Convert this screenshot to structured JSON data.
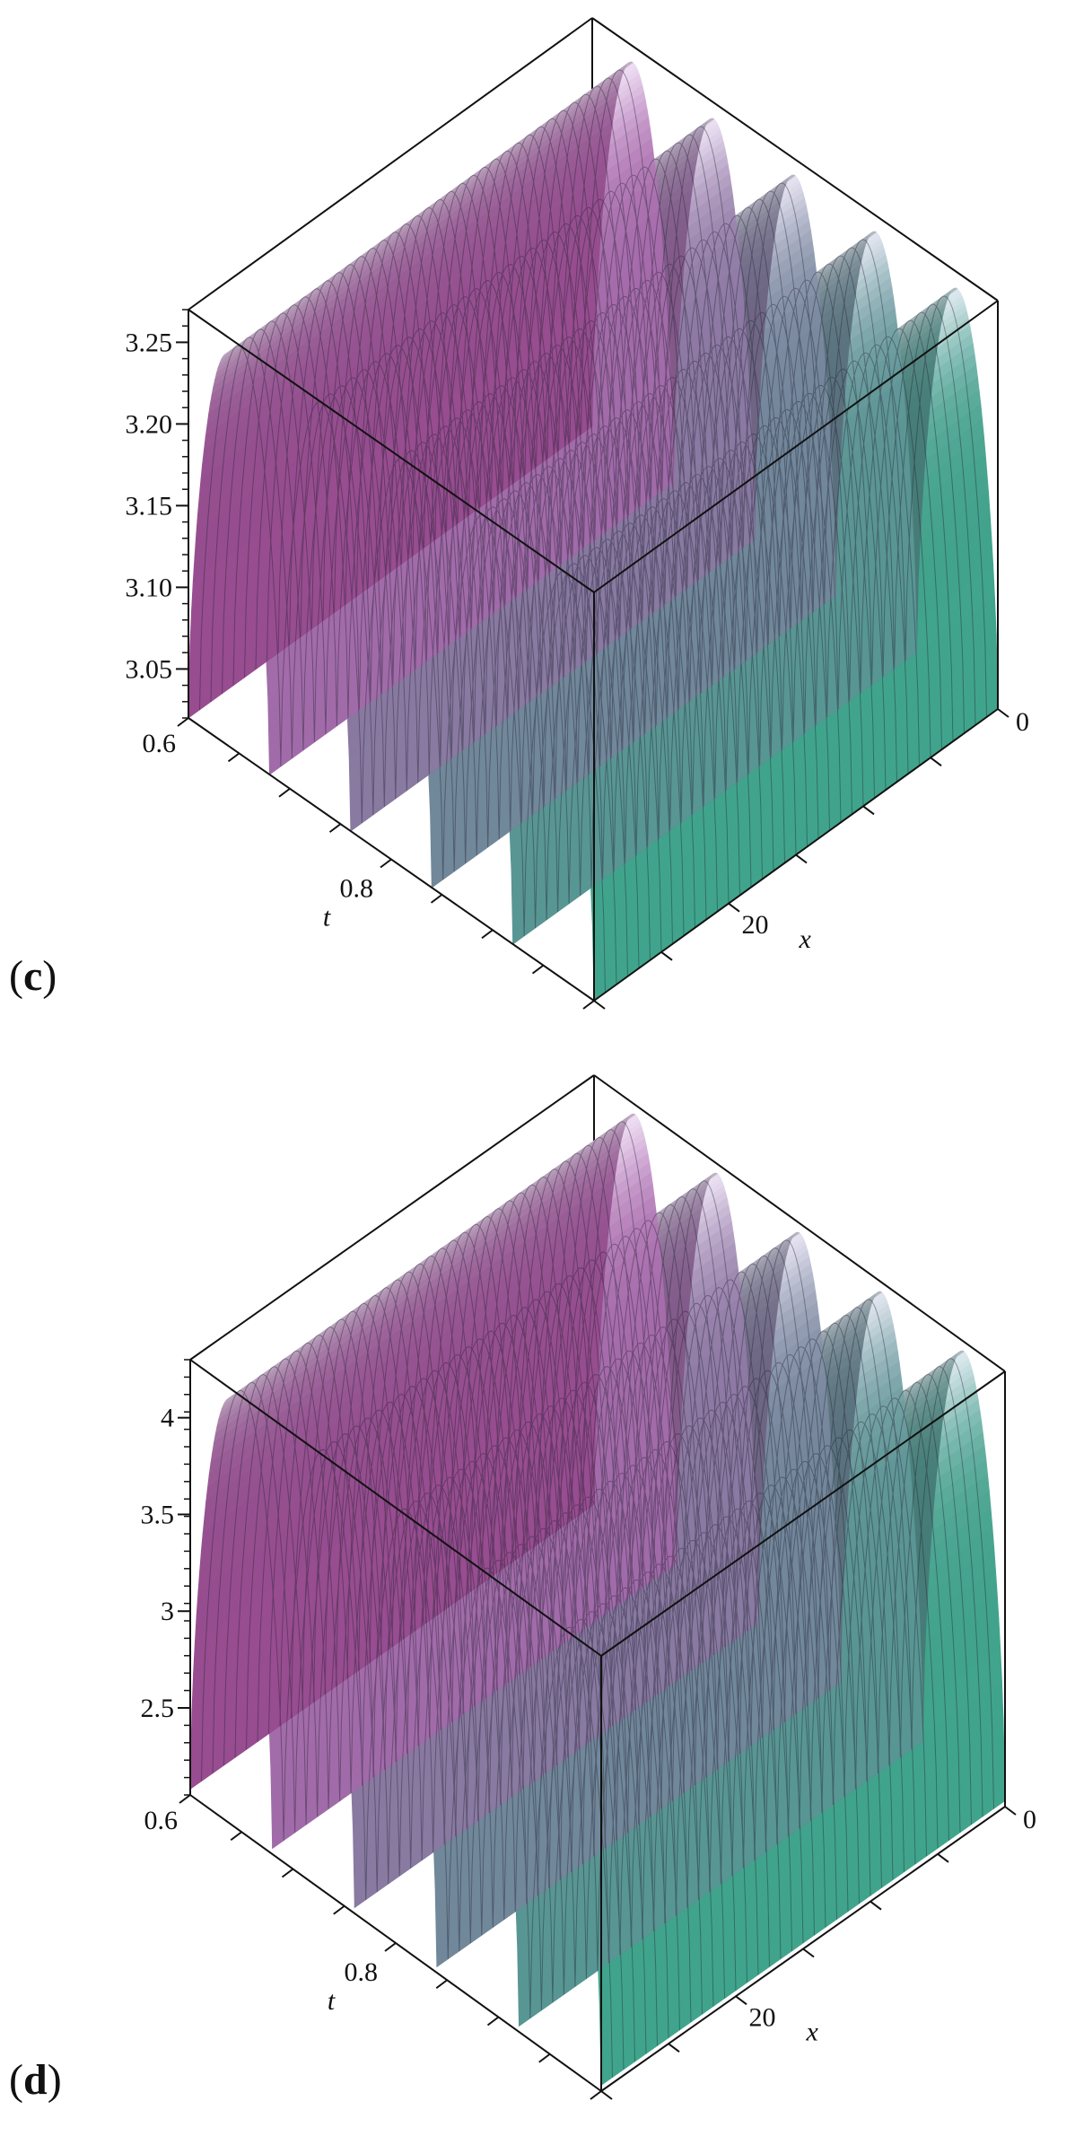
{
  "chart_data": [
    {
      "type": "surface3d",
      "panel_label": {
        "open": "(",
        "letter": "c",
        "close": ")"
      },
      "z_ticks": [
        "3.05",
        "3.10",
        "3.15",
        "3.20",
        "3.25"
      ],
      "zlim": [
        3.02,
        3.27
      ],
      "t_axis": {
        "label": "t",
        "ticks": [
          "0.6",
          "0.8"
        ],
        "range": [
          0.6,
          1.0
        ]
      },
      "x_axis": {
        "label": "x",
        "ticks": [
          "0",
          "20"
        ],
        "range": [
          0,
          30
        ]
      },
      "wave": {
        "min": 3.02,
        "max": 3.26,
        "peaks": 5
      },
      "colors": {
        "start": "#b25aa9",
        "peak": "#f4f0fa",
        "end": "#3d9e86"
      }
    },
    {
      "type": "surface3d",
      "panel_label": {
        "open": "(",
        "letter": "d",
        "close": ")"
      },
      "z_ticks": [
        "2.5",
        "3",
        "3.5",
        "4"
      ],
      "zlim": [
        2.05,
        4.3
      ],
      "t_axis": {
        "label": "t",
        "ticks": [
          "0.6",
          "0.8"
        ],
        "range": [
          0.6,
          1.0
        ]
      },
      "x_axis": {
        "label": "x",
        "ticks": [
          "0",
          "20"
        ],
        "range": [
          0,
          30
        ]
      },
      "wave": {
        "min": 2.08,
        "max": 4.25,
        "peaks": 5
      },
      "colors": {
        "start": "#b25aa9",
        "peak": "#f4f0fa",
        "end": "#3d9e86"
      }
    }
  ]
}
